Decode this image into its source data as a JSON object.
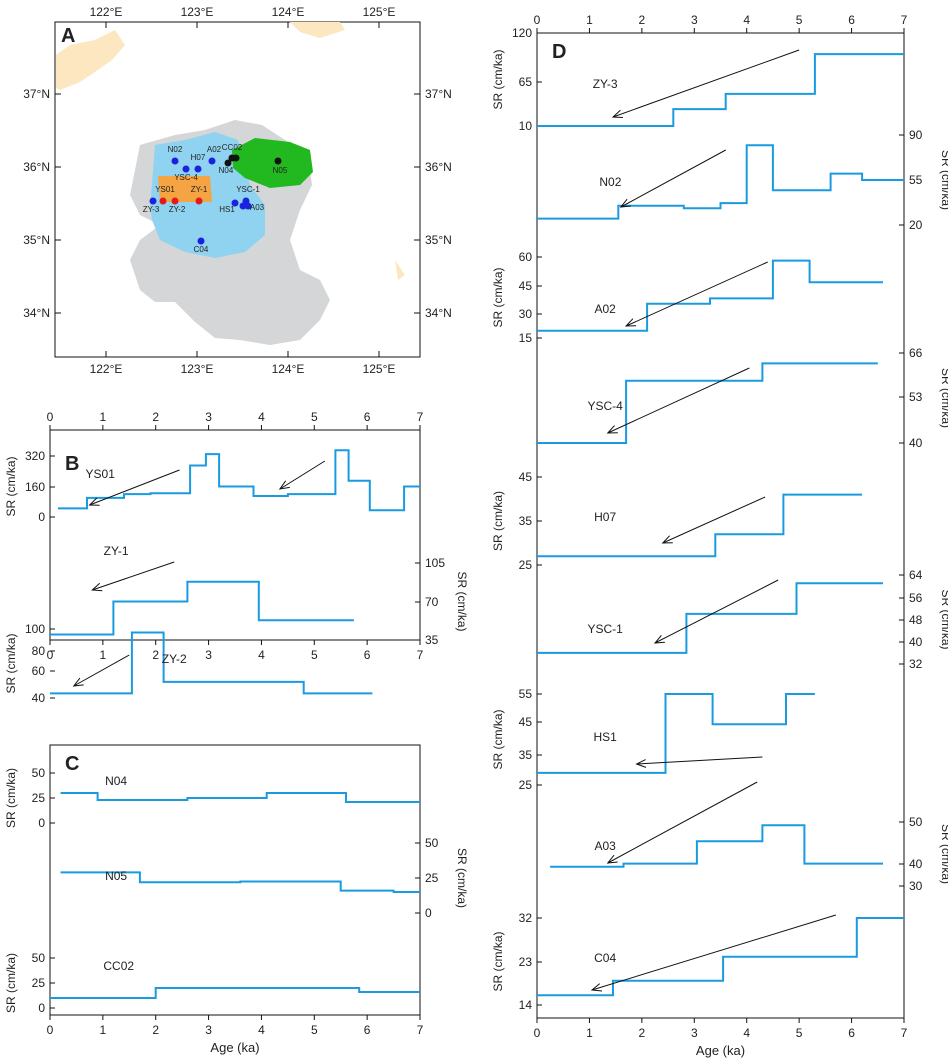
{
  "colors": {
    "series": "#1a9be0",
    "land": "#fde7c0",
    "shelf": "#d4d6d7",
    "cyan": "#8fd3f0",
    "green": "#22b81f",
    "orange": "#f5a444",
    "blue_dot": "#1a22e0",
    "red_dot": "#e01a1a",
    "black_dot": "#111111"
  },
  "panel_a": {
    "label": "A",
    "lon_ticks": [
      "122°E",
      "123°E",
      "124°E",
      "125°E"
    ],
    "lat_ticks": [
      "37°N",
      "36°N",
      "35°N",
      "34°N"
    ],
    "sites": [
      {
        "name": "N02",
        "color": "blue_dot"
      },
      {
        "name": "H07",
        "color": "blue_dot"
      },
      {
        "name": "A02",
        "color": "blue_dot"
      },
      {
        "name": "YSC-4",
        "color": "blue_dot"
      },
      {
        "name": "YS01",
        "color": "red_dot"
      },
      {
        "name": "ZY-1",
        "color": "red_dot"
      },
      {
        "name": "ZY-3",
        "color": "blue_dot"
      },
      {
        "name": "ZY-2",
        "color": "red_dot"
      },
      {
        "name": "YSC-1",
        "color": "blue_dot"
      },
      {
        "name": "HS1",
        "color": "blue_dot"
      },
      {
        "name": "A03",
        "color": "blue_dot"
      },
      {
        "name": "C04",
        "color": "blue_dot"
      },
      {
        "name": "CC02",
        "color": "black_dot"
      },
      {
        "name": "N04",
        "color": "black_dot"
      },
      {
        "name": "N05",
        "color": "black_dot"
      }
    ]
  },
  "chart_data": [
    {
      "panel": "B",
      "type": "line",
      "xlabel": "",
      "x_ticks": [
        "0",
        "1",
        "2",
        "3",
        "4",
        "5",
        "6",
        "7"
      ],
      "xlim": [
        0,
        7
      ],
      "series": [
        {
          "name": "YS01",
          "ylabel": "SR (cm/ka)",
          "y_ticks": [
            "0",
            "160",
            "320"
          ],
          "ylim": [
            -40,
            380
          ],
          "axis": "left",
          "x": [
            0.15,
            0.7,
            0.7,
            1.4,
            1.4,
            1.9,
            1.9,
            2.65,
            2.65,
            2.95,
            2.95,
            3.2,
            3.2,
            3.85,
            3.85,
            4.5,
            4.5,
            5.4,
            5.4,
            5.65,
            5.65,
            6.05,
            6.05,
            6.7,
            6.7,
            7.0
          ],
          "y": [
            45,
            45,
            100,
            100,
            120,
            120,
            125,
            125,
            270,
            270,
            330,
            330,
            160,
            160,
            110,
            110,
            120,
            120,
            350,
            350,
            190,
            190,
            35,
            35,
            160,
            160
          ]
        },
        {
          "name": "ZY-1",
          "ylabel": "SR (cm/ka)",
          "y_ticks": [
            "35",
            "70",
            "105"
          ],
          "ylim": [
            20,
            120
          ],
          "axis": "right",
          "x": [
            0.0,
            1.2,
            1.2,
            2.6,
            2.6,
            3.95,
            3.95,
            5.75
          ],
          "y": [
            40,
            40,
            70,
            70,
            88,
            88,
            53,
            53
          ]
        },
        {
          "name": "ZY-2",
          "ylabel": "SR (cm/ka)",
          "y_ticks": [
            "40",
            "60",
            "80",
            "100"
          ],
          "ylim": [
            40,
            100
          ],
          "axis": "left",
          "x": [
            0.0,
            1.55,
            1.55,
            2.15,
            2.15,
            4.6,
            4.6,
            4.8,
            4.8,
            6.1
          ],
          "y": [
            44,
            44,
            97,
            97,
            54,
            54,
            54,
            54,
            44,
            44
          ]
        }
      ]
    },
    {
      "panel": "C",
      "type": "line",
      "xlabel": "Age (ka)",
      "x_ticks": [
        "0",
        "1",
        "2",
        "3",
        "4",
        "5",
        "6",
        "7"
      ],
      "xlim": [
        0,
        7
      ],
      "series": [
        {
          "name": "N04",
          "ylabel": "SR (cm/ka)",
          "y_ticks": [
            "0",
            "25",
            "50"
          ],
          "ylim": [
            -10,
            50
          ],
          "axis": "left",
          "x": [
            0.2,
            0.9,
            0.9,
            2.6,
            2.6,
            4.1,
            4.1,
            5.6,
            5.6,
            7.0
          ],
          "y": [
            30,
            30,
            23,
            23,
            25,
            25,
            30,
            30,
            21,
            21
          ]
        },
        {
          "name": "N05",
          "ylabel": "SR (cm/ka)",
          "y_ticks": [
            "0",
            "25",
            "50"
          ],
          "ylim": [
            -10,
            60
          ],
          "axis": "right",
          "x": [
            0.2,
            1.7,
            1.7,
            3.6,
            3.6,
            5.5,
            5.5,
            6.5,
            6.5,
            7.0
          ],
          "y": [
            29,
            29,
            22,
            22,
            22.5,
            22.5,
            16,
            16,
            15,
            15
          ]
        },
        {
          "name": "CC02",
          "ylabel": "SR (cm/ka)",
          "y_ticks": [
            "0",
            "25",
            "50"
          ],
          "ylim": [
            -5,
            55
          ],
          "axis": "left",
          "x": [
            0.0,
            2.0,
            2.0,
            5.85,
            5.85,
            7.0
          ],
          "y": [
            10,
            10,
            20,
            20,
            16,
            16
          ]
        }
      ]
    },
    {
      "panel": "D",
      "type": "line",
      "xlabel": "Age (ka)",
      "x_ticks": [
        "0",
        "1",
        "2",
        "3",
        "4",
        "5",
        "6",
        "7"
      ],
      "xlim": [
        0,
        7
      ],
      "series": [
        {
          "name": "ZY-3",
          "ylabel": "SR (cm/ka)",
          "y_ticks": [
            "10",
            "65",
            "120"
          ],
          "axis": "left",
          "ylim": [
            0,
            125
          ],
          "x": [
            0.0,
            2.6,
            2.6,
            3.6,
            3.6,
            5.3,
            5.3,
            7.0
          ],
          "y": [
            10,
            10,
            30,
            30,
            48,
            48,
            95,
            95
          ]
        },
        {
          "name": "N02",
          "ylabel": "SR (cm/ka)",
          "y_ticks": [
            "20",
            "55",
            "90"
          ],
          "axis": "right",
          "ylim": [
            10,
            100
          ],
          "x": [
            0.0,
            1.55,
            1.55,
            2.8,
            2.8,
            3.5,
            3.5,
            4.0,
            4.0,
            4.5,
            4.5,
            5.6,
            5.6,
            6.2,
            6.2,
            7.0
          ],
          "y": [
            25,
            25,
            35,
            35,
            33,
            33,
            37,
            37,
            82,
            82,
            47,
            47,
            60,
            60,
            55,
            55
          ]
        },
        {
          "name": "A02",
          "ylabel": "SR (cm/ka)",
          "y_ticks": [
            "15",
            "30",
            "45",
            "60"
          ],
          "axis": "left",
          "ylim": [
            10,
            62
          ],
          "x": [
            0.0,
            2.1,
            2.1,
            3.3,
            3.3,
            4.5,
            4.5,
            5.2,
            5.2,
            6.6
          ],
          "y": [
            19,
            19,
            34,
            34,
            37,
            37,
            58,
            58,
            46,
            46
          ]
        },
        {
          "name": "YSC-4",
          "ylabel": "SR (cm/ka)",
          "y_ticks": [
            "40",
            "53",
            "66"
          ],
          "axis": "right",
          "ylim": [
            35,
            70
          ],
          "x": [
            0.0,
            1.7,
            1.7,
            4.3,
            4.3,
            6.5
          ],
          "y": [
            40,
            40,
            58,
            58,
            63,
            63
          ]
        },
        {
          "name": "H07",
          "ylabel": "SR (cm/ka)",
          "y_ticks": [
            "25",
            "35",
            "45"
          ],
          "axis": "left",
          "ylim": [
            22,
            48
          ],
          "x": [
            0.0,
            3.4,
            3.4,
            4.7,
            4.7,
            6.2
          ],
          "y": [
            27,
            27,
            32,
            32,
            41,
            41
          ]
        },
        {
          "name": "YSC-1",
          "ylabel": "SR (cm/ka)",
          "y_ticks": [
            "32",
            "40",
            "48",
            "56",
            "64"
          ],
          "axis": "right",
          "ylim": [
            28,
            66
          ],
          "x": [
            0.0,
            2.85,
            2.85,
            4.95,
            4.95,
            6.6
          ],
          "y": [
            36,
            36,
            50,
            50,
            61,
            61
          ]
        },
        {
          "name": "HS1",
          "ylabel": "SR (cm/ka)",
          "y_ticks": [
            "25",
            "35",
            "45",
            "55"
          ],
          "axis": "left",
          "ylim": [
            22,
            58
          ],
          "x": [
            0.0,
            2.45,
            2.45,
            3.35,
            3.35,
            4.75,
            4.75,
            5.3
          ],
          "y": [
            29,
            29,
            55,
            55,
            45,
            45,
            55,
            55
          ]
        },
        {
          "name": "A03",
          "ylabel": "SR (cm/ka)",
          "y_ticks": [
            "30",
            "40",
            "50"
          ],
          "axis": "right",
          "ylim": [
            28,
            52
          ],
          "x": [
            0.25,
            1.65,
            1.65,
            3.05,
            3.05,
            4.3,
            4.3,
            5.1,
            5.1,
            6.6
          ],
          "y": [
            36,
            36,
            37,
            37,
            44,
            44,
            49,
            49,
            37,
            37
          ]
        },
        {
          "name": "C04",
          "ylabel": "SR (cm/ka)",
          "y_ticks": [
            "14",
            "23",
            "32"
          ],
          "axis": "left",
          "ylim": [
            12,
            34
          ],
          "x": [
            0.0,
            1.45,
            1.45,
            3.55,
            3.55,
            6.1,
            6.1,
            7.0
          ],
          "y": [
            16,
            16,
            19,
            19,
            24,
            24,
            32,
            32
          ]
        }
      ]
    }
  ],
  "panel_b": {
    "label": "B"
  },
  "panel_c": {
    "label": "C"
  },
  "panel_d": {
    "label": "D"
  }
}
